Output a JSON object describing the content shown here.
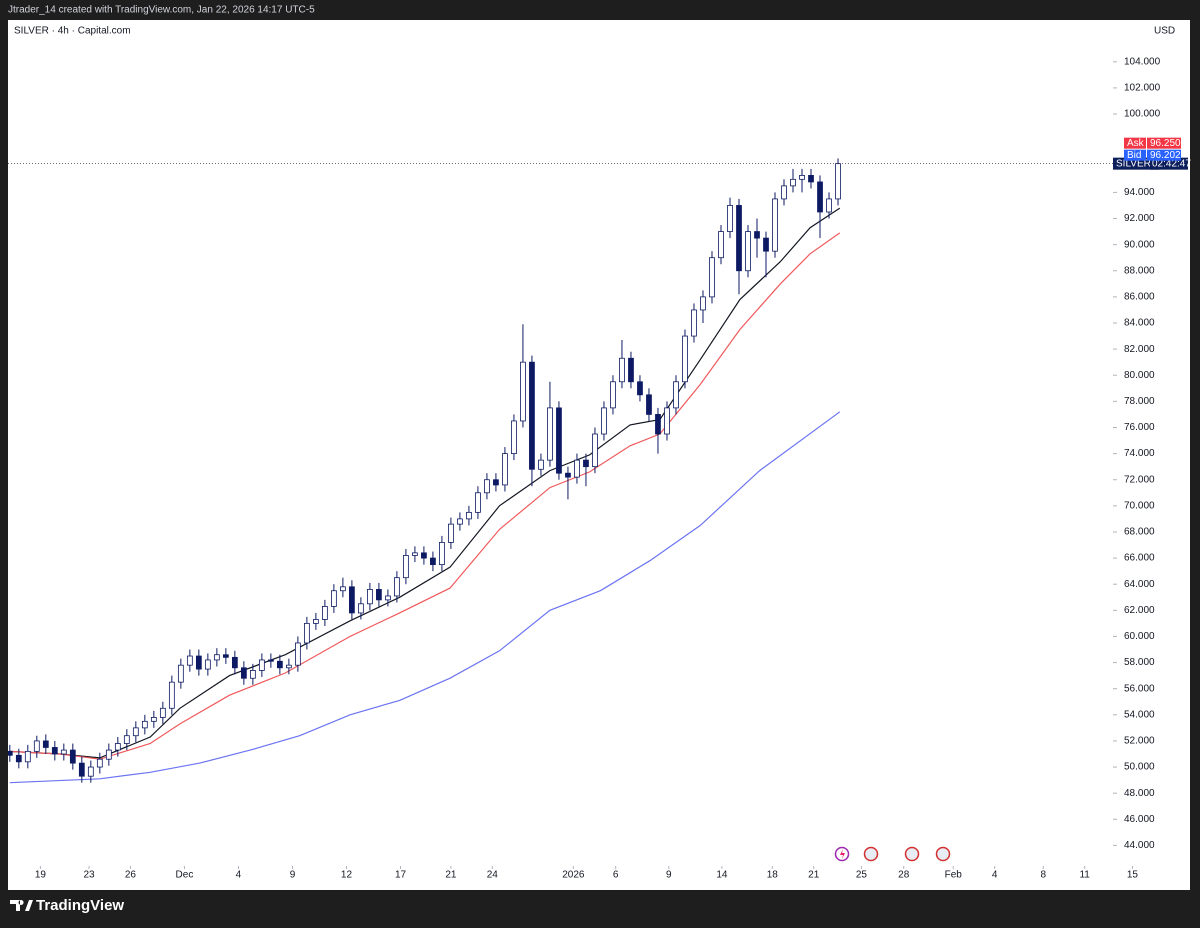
{
  "top_bar": "Jtrader_14 created with TradingView.com, Jan 22, 2026 14:17 UTC-5",
  "footer": {
    "logo_text": "TradingView"
  },
  "chart_data": {
    "type": "candlestick",
    "title": "SILVER · 4h · Capital.com",
    "currency": "USD",
    "x": [
      0,
      1,
      2,
      3,
      4,
      5,
      6,
      7,
      8,
      9,
      10,
      11,
      12,
      13,
      14,
      15,
      16,
      17,
      18,
      19,
      20,
      21,
      22,
      23,
      24,
      25,
      26,
      27,
      28,
      29,
      30,
      31,
      32,
      33,
      34,
      35,
      36,
      37,
      38,
      39,
      40,
      41,
      42,
      43,
      44,
      45,
      46,
      47,
      48,
      49,
      50,
      51,
      52,
      53,
      54,
      55,
      56,
      57,
      58,
      59,
      60,
      61,
      62,
      63,
      64,
      65,
      66,
      67,
      68,
      69,
      70,
      71,
      72,
      73,
      74,
      75,
      76,
      77,
      78,
      79,
      80,
      81,
      82,
      83,
      84,
      85,
      86,
      87,
      88,
      89,
      90,
      91,
      92
    ],
    "open": [
      51.2,
      50.9,
      50.4,
      51.2,
      52.0,
      51.5,
      51.0,
      51.3,
      50.3,
      49.3,
      50.0,
      50.6,
      51.3,
      51.8,
      52.4,
      53.0,
      53.5,
      53.8,
      54.5,
      56.5,
      57.8,
      58.5,
      57.5,
      58.2,
      58.6,
      58.4,
      57.6,
      56.8,
      57.4,
      58.2,
      58.1,
      57.6,
      57.8,
      59.5,
      61.0,
      61.3,
      62.3,
      63.5,
      63.8,
      61.8,
      62.5,
      63.6,
      62.8,
      63.1,
      64.5,
      66.2,
      66.4,
      66.0,
      65.5,
      67.2,
      68.6,
      69.0,
      69.5,
      71.0,
      72.0,
      71.6,
      74.0,
      76.5,
      81.0,
      72.8,
      73.5,
      77.5,
      72.5,
      72.2,
      73.5,
      73.0,
      75.5,
      77.5,
      79.5,
      81.3,
      79.5,
      78.5,
      77.0,
      75.5,
      77.5,
      79.5,
      83.0,
      85.0,
      86.0,
      89.0,
      91.0,
      93.0,
      88.0,
      91.0,
      90.5,
      89.5,
      93.5,
      94.5,
      95.0,
      95.3,
      94.8,
      92.5,
      93.5
    ],
    "high": [
      51.7,
      51.4,
      51.7,
      52.4,
      52.5,
      52.0,
      51.8,
      51.8,
      50.8,
      50.5,
      51.1,
      51.8,
      52.3,
      52.9,
      53.5,
      54.0,
      54.3,
      55.0,
      57.0,
      58.3,
      59.0,
      59.0,
      58.7,
      59.1,
      59.1,
      58.9,
      58.1,
      57.9,
      58.7,
      58.7,
      58.6,
      58.3,
      60.0,
      61.5,
      61.8,
      62.8,
      64.0,
      64.5,
      64.3,
      63.0,
      64.1,
      64.1,
      63.6,
      65.0,
      66.7,
      66.9,
      66.9,
      66.5,
      67.7,
      69.1,
      69.5,
      70.0,
      71.5,
      72.5,
      72.5,
      74.5,
      77.0,
      83.9,
      81.5,
      74.0,
      79.5,
      78.0,
      73.0,
      74.0,
      74.0,
      76.0,
      78.0,
      80.0,
      82.7,
      81.8,
      80.0,
      79.0,
      77.5,
      78.0,
      80.0,
      83.5,
      85.5,
      86.5,
      89.5,
      91.5,
      93.6,
      93.5,
      91.5,
      92.0,
      91.0,
      94.0,
      95.0,
      95.8,
      95.8,
      95.8,
      95.3,
      94.0,
      96.6
    ],
    "low": [
      50.4,
      49.9,
      49.9,
      50.7,
      51.0,
      50.5,
      50.5,
      49.8,
      48.8,
      48.8,
      49.5,
      50.1,
      50.8,
      51.3,
      51.9,
      52.5,
      53.0,
      53.3,
      54.0,
      56.0,
      57.3,
      57.0,
      57.0,
      57.7,
      57.9,
      57.1,
      56.3,
      56.3,
      56.9,
      57.6,
      57.1,
      57.1,
      57.3,
      59.0,
      60.5,
      60.8,
      61.8,
      63.0,
      61.3,
      61.3,
      62.0,
      62.3,
      62.3,
      62.6,
      64.0,
      65.7,
      65.5,
      65.0,
      65.0,
      66.7,
      68.1,
      68.5,
      69.0,
      70.5,
      71.1,
      71.1,
      73.5,
      76.0,
      71.5,
      72.3,
      73.0,
      72.0,
      70.5,
      71.7,
      71.5,
      72.5,
      75.0,
      77.0,
      79.0,
      79.0,
      78.0,
      76.5,
      74.0,
      75.0,
      77.0,
      79.0,
      82.5,
      84.0,
      85.5,
      88.5,
      90.5,
      86.2,
      87.5,
      89.0,
      87.5,
      89.0,
      93.0,
      94.0,
      94.0,
      94.3,
      90.5,
      92.0,
      93.0
    ],
    "close": [
      50.9,
      50.4,
      51.2,
      52.0,
      51.5,
      51.0,
      51.3,
      50.3,
      49.3,
      50.0,
      50.6,
      51.3,
      51.8,
      52.4,
      53.0,
      53.5,
      53.8,
      54.5,
      56.5,
      57.8,
      58.5,
      57.5,
      58.2,
      58.6,
      58.4,
      57.6,
      56.8,
      57.4,
      58.2,
      58.1,
      57.6,
      57.8,
      59.5,
      61.0,
      61.3,
      62.3,
      63.5,
      63.8,
      61.8,
      62.5,
      63.6,
      62.8,
      63.1,
      64.5,
      66.2,
      66.4,
      66.0,
      65.5,
      67.2,
      68.6,
      69.0,
      69.5,
      71.0,
      72.0,
      71.6,
      74.0,
      76.5,
      81.0,
      72.8,
      73.5,
      77.5,
      72.5,
      72.2,
      73.5,
      73.0,
      75.5,
      77.5,
      79.5,
      81.3,
      79.5,
      78.5,
      77.0,
      75.5,
      77.5,
      79.5,
      83.0,
      85.0,
      86.0,
      89.0,
      91.0,
      93.0,
      88.0,
      91.0,
      90.5,
      89.5,
      93.5,
      94.5,
      95.0,
      95.3,
      94.8,
      92.5,
      93.5,
      96.2
    ],
    "up_color": "#ffffff",
    "down_color": "#0d1a63",
    "wick_color": "#0d1a63",
    "lines": [
      {
        "color": "#131722",
        "x": [
          0,
          5.6,
          10,
          15.6,
          18.9,
          24.4,
          30.6,
          37.8,
          43.3,
          48.9,
          54.4,
          60,
          64.4,
          68.9,
          72.2,
          76.7,
          81.1,
          85.6,
          88.9,
          92.2
        ],
        "values": [
          51.2,
          51.0,
          50.7,
          52.3,
          54.5,
          57.0,
          58.6,
          61.2,
          63.0,
          65.3,
          70.0,
          72.7,
          73.9,
          76.2,
          76.6,
          81.2,
          85.8,
          88.7,
          91.3,
          92.8
        ]
      },
      {
        "color": "#f0595c",
        "x": [
          0,
          5.6,
          10,
          15.6,
          18.9,
          24.4,
          30.6,
          37.8,
          43.3,
          48.9,
          54.4,
          60,
          64.4,
          68.9,
          72.2,
          76.7,
          81.1,
          85.6,
          88.9,
          92.2
        ],
        "values": [
          51.2,
          51.0,
          50.6,
          51.8,
          53.3,
          55.5,
          57.2,
          60.0,
          61.8,
          63.7,
          68.2,
          71.4,
          72.6,
          74.6,
          75.5,
          79.3,
          83.5,
          87.0,
          89.3,
          90.9
        ]
      },
      {
        "color": "#6b74f2",
        "x": [
          0,
          10,
          15.6,
          21.1,
          26.7,
          32.2,
          37.8,
          43.3,
          48.9,
          54.4,
          60,
          65.6,
          71.1,
          76.7,
          83.3,
          92.2
        ],
        "values": [
          48.8,
          49.1,
          49.6,
          50.3,
          51.3,
          52.4,
          54.0,
          55.1,
          56.8,
          58.9,
          62.0,
          63.5,
          65.8,
          68.5,
          72.7,
          77.2
        ]
      }
    ],
    "xlim": [
      -0.2,
      126.1
    ],
    "xticks": [
      {
        "value": 3.4,
        "label": "19"
      },
      {
        "value": 8.8,
        "label": "23"
      },
      {
        "value": 13.4,
        "label": "26"
      },
      {
        "value": 19.4,
        "label": "Dec"
      },
      {
        "value": 25.4,
        "label": "4"
      },
      {
        "value": 31.4,
        "label": "9"
      },
      {
        "value": 37.4,
        "label": "12"
      },
      {
        "value": 43.4,
        "label": "17"
      },
      {
        "value": 49,
        "label": "21"
      },
      {
        "value": 53.6,
        "label": "24"
      },
      {
        "value": 62.6,
        "label": "2026"
      },
      {
        "value": 67.3,
        "label": "6"
      },
      {
        "value": 73.2,
        "label": "9"
      },
      {
        "value": 79.1,
        "label": "14"
      },
      {
        "value": 84.7,
        "label": "18"
      },
      {
        "value": 89.3,
        "label": "21"
      },
      {
        "value": 94.6,
        "label": "25"
      },
      {
        "value": 99.3,
        "label": "28"
      },
      {
        "value": 104.8,
        "label": "Feb"
      },
      {
        "value": 109.4,
        "label": "4"
      },
      {
        "value": 114.8,
        "label": "8"
      },
      {
        "value": 119.4,
        "label": "11"
      },
      {
        "value": 124.7,
        "label": "15"
      }
    ],
    "ylim": [
      42.5,
      107.2
    ],
    "yticks": [
      {
        "value": 44,
        "label": "44.000"
      },
      {
        "value": 46,
        "label": "46.000"
      },
      {
        "value": 48,
        "label": "48.000"
      },
      {
        "value": 50,
        "label": "50.000"
      },
      {
        "value": 52,
        "label": "52.000"
      },
      {
        "value": 54,
        "label": "54.000"
      },
      {
        "value": 56,
        "label": "56.000"
      },
      {
        "value": 58,
        "label": "58.000"
      },
      {
        "value": 60,
        "label": "60.000"
      },
      {
        "value": 62,
        "label": "62.000"
      },
      {
        "value": 64,
        "label": "64.000"
      },
      {
        "value": 66,
        "label": "66.000"
      },
      {
        "value": 68,
        "label": "68.000"
      },
      {
        "value": 70,
        "label": "70.000"
      },
      {
        "value": 72,
        "label": "72.000"
      },
      {
        "value": 74,
        "label": "74.000"
      },
      {
        "value": 76,
        "label": "76.000"
      },
      {
        "value": 78,
        "label": "78.000"
      },
      {
        "value": 80,
        "label": "80.000"
      },
      {
        "value": 82,
        "label": "82.000"
      },
      {
        "value": 84,
        "label": "84.000"
      },
      {
        "value": 86,
        "label": "86.000"
      },
      {
        "value": 88,
        "label": "88.000"
      },
      {
        "value": 90,
        "label": "90.000"
      },
      {
        "value": 92,
        "label": "92.000"
      },
      {
        "value": 94,
        "label": "94.000"
      },
      {
        "value": 100,
        "label": "100.000"
      },
      {
        "value": 102,
        "label": "102.000"
      },
      {
        "value": 104,
        "label": "104.000"
      }
    ],
    "quotes": [
      {
        "label": "Ask",
        "value": 96.25,
        "value_label": "96.250",
        "color": "#f23645"
      },
      {
        "label": "Bid",
        "value": 96.202,
        "value_label": "96.202",
        "color": "#2962ff"
      }
    ],
    "symbol_badge": {
      "label": "SILVER",
      "countdown": "02:42:47",
      "color": "#0c1e5b"
    }
  }
}
